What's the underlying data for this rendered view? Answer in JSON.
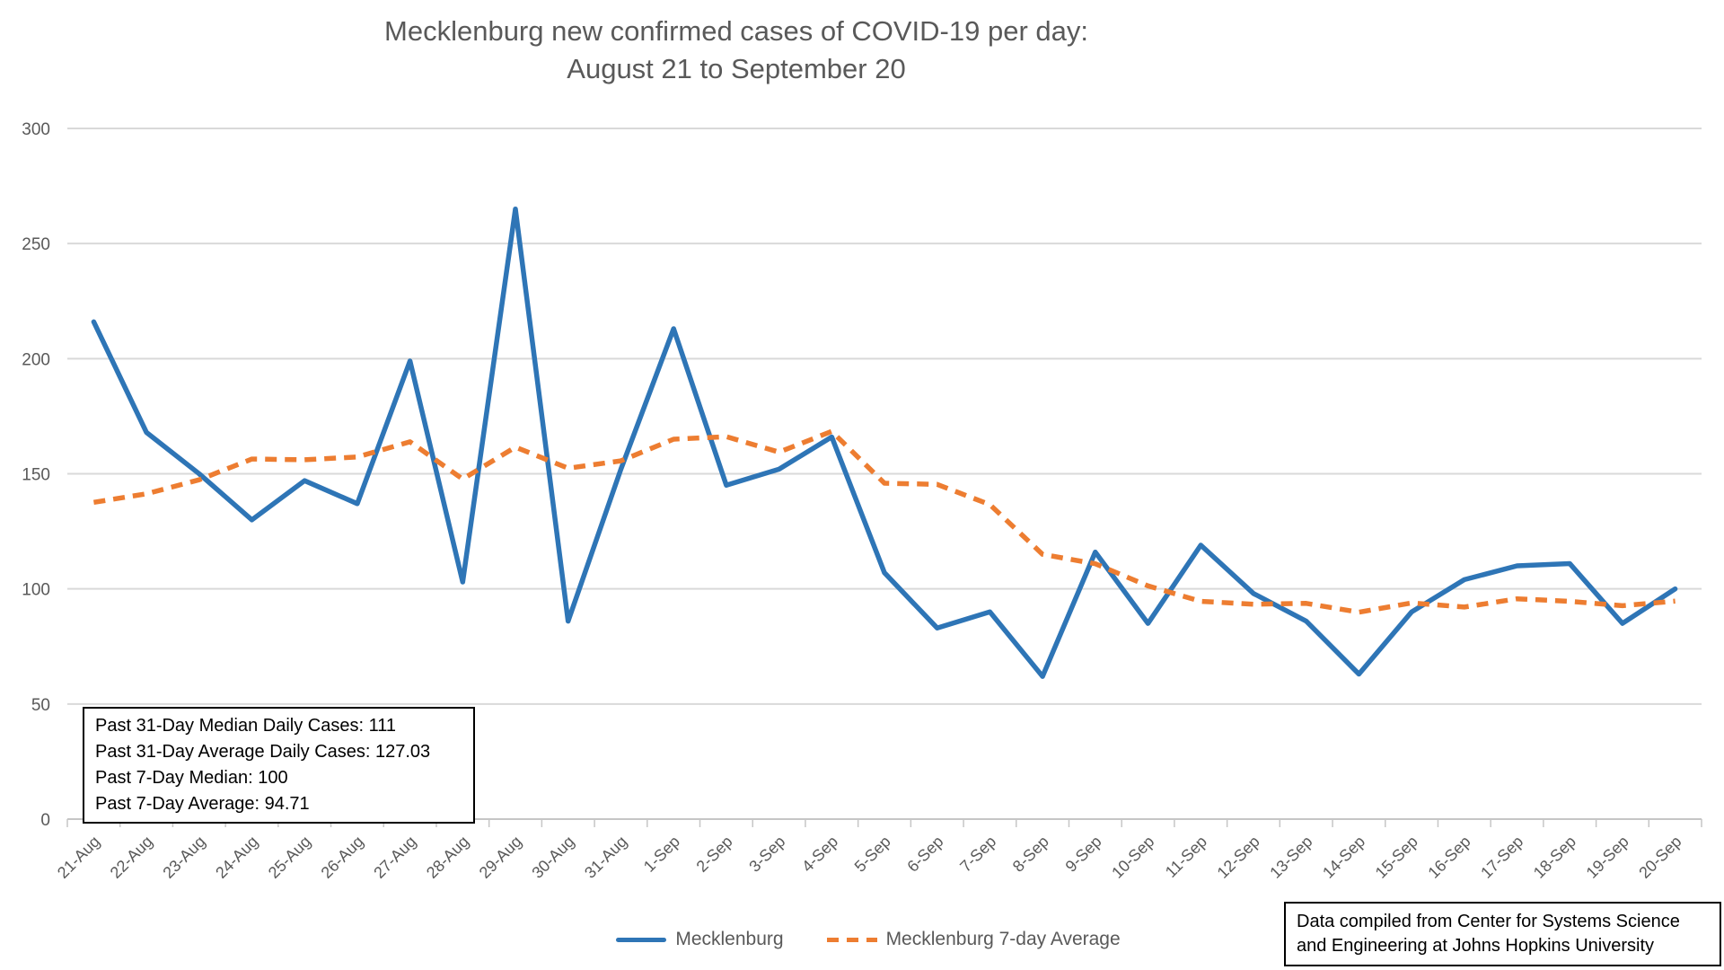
{
  "title": {
    "line1": "Mecklenburg new confirmed cases of COVID-19 per day:",
    "line2": "August 21 to September 20"
  },
  "stats_box": {
    "lines": [
      "Past 31-Day Median Daily Cases: 111",
      "Past 31-Day Average Daily Cases: 127.03",
      "Past 7-Day Median: 100",
      "Past 7-Day Average: 94.71"
    ]
  },
  "source_box": {
    "text": "Data compiled from Center for Systems Science and Engineering at Johns Hopkins University"
  },
  "colors": {
    "series1": "#2E75B6",
    "series2": "#ED7D31",
    "gridline": "#D9D9D9",
    "axis_line": "#C6C6C6",
    "axis_text": "#595959",
    "title_text": "#595959"
  },
  "chart_data": {
    "type": "line",
    "title": "Mecklenburg new confirmed cases of COVID-19 per day: August 21 to September 20",
    "xlabel": "",
    "ylabel": "",
    "ylim": [
      0,
      300
    ],
    "yticks": [
      0,
      50,
      100,
      150,
      200,
      250,
      300
    ],
    "grid": true,
    "legend_position": "bottom",
    "categories": [
      "21-Aug",
      "22-Aug",
      "23-Aug",
      "24-Aug",
      "25-Aug",
      "26-Aug",
      "27-Aug",
      "28-Aug",
      "29-Aug",
      "30-Aug",
      "31-Aug",
      "1-Sep",
      "2-Sep",
      "3-Sep",
      "4-Sep",
      "5-Sep",
      "6-Sep",
      "7-Sep",
      "8-Sep",
      "9-Sep",
      "10-Sep",
      "11-Sep",
      "12-Sep",
      "13-Sep",
      "14-Sep",
      "15-Sep",
      "16-Sep",
      "17-Sep",
      "18-Sep",
      "19-Sep",
      "20-Sep"
    ],
    "series": [
      {
        "name": "Mecklenburg",
        "color": "#2E75B6",
        "line_style": "solid",
        "values": [
          216,
          168,
          150,
          130,
          147,
          137,
          199,
          103,
          265,
          86,
          152,
          213,
          145,
          152,
          166,
          107,
          83,
          90,
          62,
          116,
          85,
          119,
          98,
          86,
          63,
          90,
          104,
          110,
          111,
          85,
          100
        ]
      },
      {
        "name": "Mecklenburg 7-day Average",
        "color": "#ED7D31",
        "line_style": "dashed",
        "values": [
          137.6,
          141.3,
          147.4,
          156.4,
          156.1,
          157.3,
          163.9,
          147.7,
          161.6,
          152.4,
          155.6,
          165.0,
          166.1,
          159.4,
          168.4,
          145.9,
          145.4,
          136.6,
          115.0,
          110.9,
          101.3,
          94.6,
          93.3,
          93.7,
          89.9,
          93.9,
          92.1,
          95.7,
          94.6,
          92.7,
          94.7
        ]
      }
    ]
  }
}
